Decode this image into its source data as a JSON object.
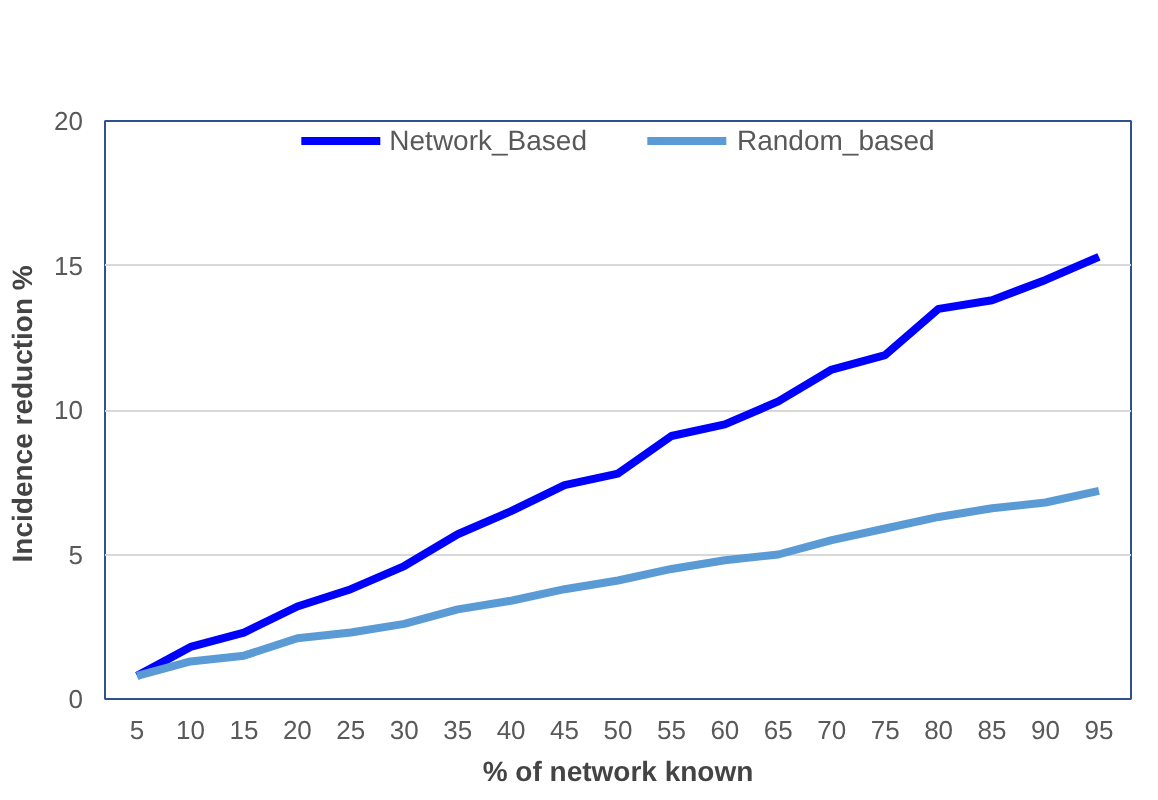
{
  "chart_data": {
    "type": "line",
    "xlabel": "% of network known",
    "ylabel": "Incidence  reduction %",
    "categories": [
      "5",
      "10",
      "15",
      "20",
      "25",
      "30",
      "35",
      "40",
      "45",
      "50",
      "55",
      "60",
      "65",
      "70",
      "75",
      "80",
      "85",
      "90",
      "95"
    ],
    "series": [
      {
        "name": "Network_Based",
        "color": "#0000ff",
        "values": [
          0.8,
          1.8,
          2.3,
          3.2,
          3.8,
          4.6,
          5.7,
          6.5,
          7.4,
          7.8,
          9.1,
          9.5,
          10.3,
          11.4,
          11.9,
          13.5,
          13.8,
          14.5,
          15.3
        ]
      },
      {
        "name": "Random_based",
        "color": "#5b9bd5",
        "values": [
          0.8,
          1.3,
          1.5,
          2.1,
          2.3,
          2.6,
          3.1,
          3.4,
          3.8,
          4.1,
          4.5,
          4.8,
          5.0,
          5.5,
          5.9,
          6.3,
          6.6,
          6.8,
          7.2
        ]
      }
    ],
    "ylim": [
      0,
      20
    ],
    "yticks": [
      0,
      5,
      10,
      15,
      20
    ],
    "grid": "y",
    "legend": "top",
    "marker": "none",
    "line_style": "solid"
  }
}
